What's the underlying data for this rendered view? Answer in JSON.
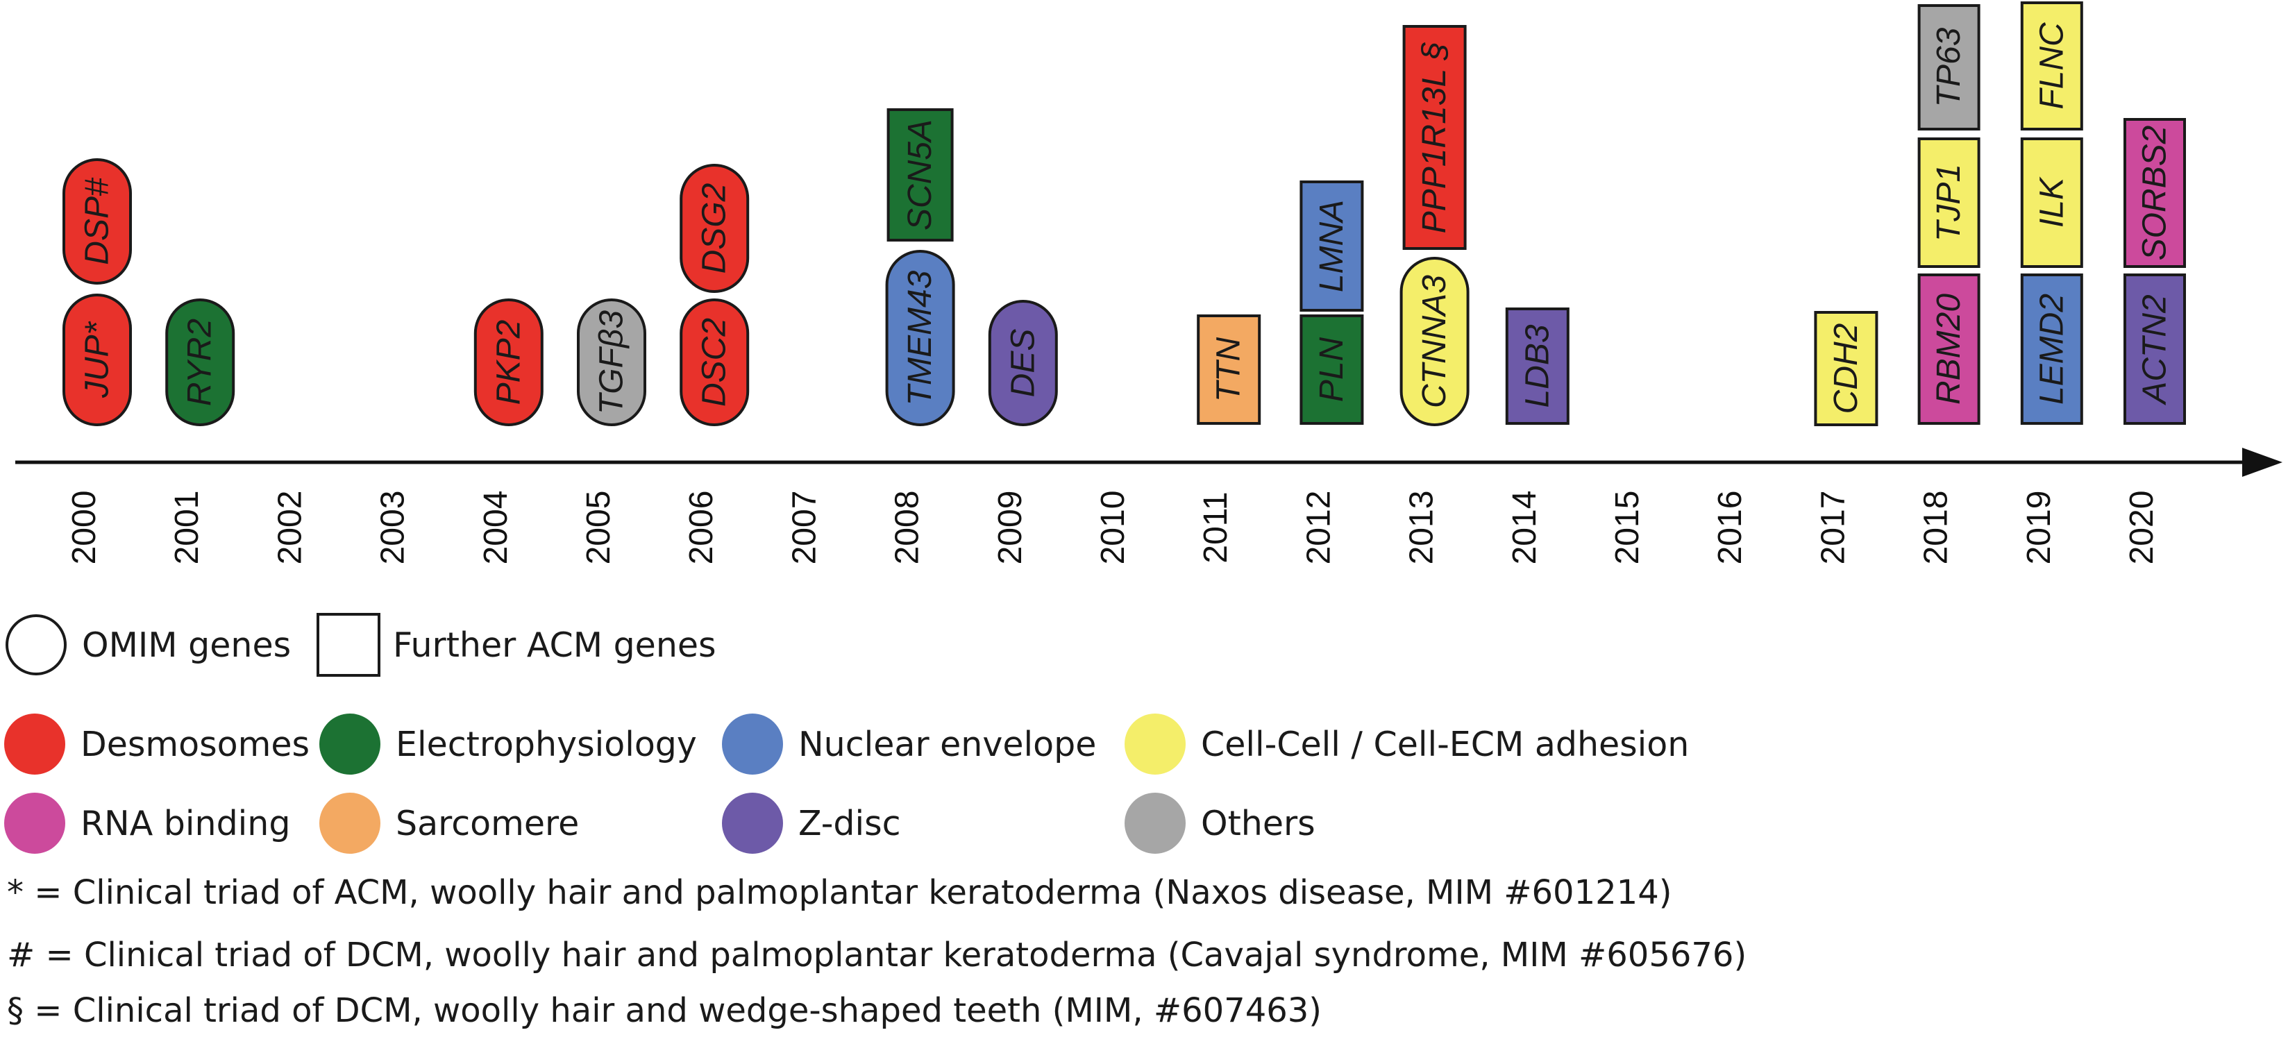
{
  "categories": [
    {
      "id": "desmosomes",
      "label": "Desmosomes",
      "color": "#e8322b"
    },
    {
      "id": "electrophysiology",
      "label": "Electrophysiology",
      "color": "#1c7233"
    },
    {
      "id": "nuclear",
      "label": "Nuclear envelope",
      "color": "#5a7fc2"
    },
    {
      "id": "adhesion",
      "label": "Cell-Cell / Cell-ECM adhesion",
      "color": "#f4ee6a"
    },
    {
      "id": "rna",
      "label": "RNA binding",
      "color": "#cc4a9c"
    },
    {
      "id": "sarcomere",
      "label": "Sarcomere",
      "color": "#f3a962"
    },
    {
      "id": "zdisc",
      "label": "Z-disc",
      "color": "#6d5aa8"
    },
    {
      "id": "others",
      "label": "Others",
      "color": "#a6a6a6"
    }
  ],
  "shape_legend": {
    "omim_label": "OMIM genes",
    "further_label": "Further ACM genes"
  },
  "years": [
    "2000",
    "2001",
    "2002",
    "2003",
    "2004",
    "2005",
    "2006",
    "2007",
    "2008",
    "2009",
    "2010",
    "2011",
    "2012",
    "2013",
    "2014",
    "2015",
    "2016",
    "2017",
    "2018",
    "2019",
    "2020"
  ],
  "genes": [
    {
      "name": "JUP*",
      "year": "2000",
      "category": "desmosomes",
      "shape": "pill",
      "level": 0
    },
    {
      "name": "DSP#",
      "year": "2000",
      "category": "desmosomes",
      "shape": "pill",
      "level": 1
    },
    {
      "name": "RYR2",
      "year": "2001",
      "category": "electrophysiology",
      "shape": "pill",
      "level": 0
    },
    {
      "name": "PKP2",
      "year": "2004",
      "category": "desmosomes",
      "shape": "pill",
      "level": 0
    },
    {
      "name": "TGFβ3",
      "year": "2005",
      "category": "others",
      "shape": "pill",
      "level": 0
    },
    {
      "name": "DSC2",
      "year": "2006",
      "category": "desmosomes",
      "shape": "pill",
      "level": 0
    },
    {
      "name": "DSG2",
      "year": "2006",
      "category": "desmosomes",
      "shape": "pill",
      "level": 1
    },
    {
      "name": "TMEM43",
      "year": "2008",
      "category": "nuclear",
      "shape": "pill",
      "level": 0
    },
    {
      "name": "SCN5A",
      "year": "2008",
      "category": "electrophysiology",
      "shape": "rect",
      "level": 1
    },
    {
      "name": "DES",
      "year": "2009",
      "category": "zdisc",
      "shape": "pill",
      "level": 0
    },
    {
      "name": "TTN",
      "year": "2011",
      "category": "sarcomere",
      "shape": "rect",
      "level": 0
    },
    {
      "name": "PLN",
      "year": "2012",
      "category": "electrophysiology",
      "shape": "rect",
      "level": 0
    },
    {
      "name": "LMNA",
      "year": "2012",
      "category": "nuclear",
      "shape": "rect",
      "level": 1
    },
    {
      "name": "CTNNA3",
      "year": "2013",
      "category": "adhesion",
      "shape": "pill",
      "level": 0
    },
    {
      "name": "PPP1R13L §",
      "year": "2013",
      "category": "desmosomes",
      "shape": "rect",
      "level": 1
    },
    {
      "name": "LDB3",
      "year": "2014",
      "category": "zdisc",
      "shape": "rect",
      "level": 0
    },
    {
      "name": "CDH2",
      "year": "2017",
      "category": "adhesion",
      "shape": "rect",
      "level": 0
    },
    {
      "name": "RBM20",
      "year": "2018",
      "category": "rna",
      "shape": "rect",
      "level": 0
    },
    {
      "name": "TJP1",
      "year": "2018",
      "category": "adhesion",
      "shape": "rect",
      "level": 1
    },
    {
      "name": "TP63",
      "year": "2018",
      "category": "others",
      "shape": "rect",
      "level": 2
    },
    {
      "name": "LEMD2",
      "year": "2019",
      "category": "nuclear",
      "shape": "rect",
      "level": 0
    },
    {
      "name": "ILK",
      "year": "2019",
      "category": "adhesion",
      "shape": "rect",
      "level": 1
    },
    {
      "name": "FLNC",
      "year": "2019",
      "category": "adhesion",
      "shape": "rect",
      "level": 2
    },
    {
      "name": "ACTN2",
      "year": "2020",
      "category": "zdisc",
      "shape": "rect",
      "level": 0
    },
    {
      "name": "SORBS2",
      "year": "2020",
      "category": "rna",
      "shape": "rect",
      "level": 1
    }
  ],
  "footnotes": [
    "* = Clinical triad of ACM, woolly hair and palmoplantar keratoderma (Naxos disease, MIM #601214)",
    "# = Clinical triad of DCM, woolly hair and palmoplantar keratoderma (Cavajal syndrome, MIM #605676)",
    "§ = Clinical triad of DCM, woolly hair and wedge-shaped teeth (MIM, #607463)"
  ]
}
